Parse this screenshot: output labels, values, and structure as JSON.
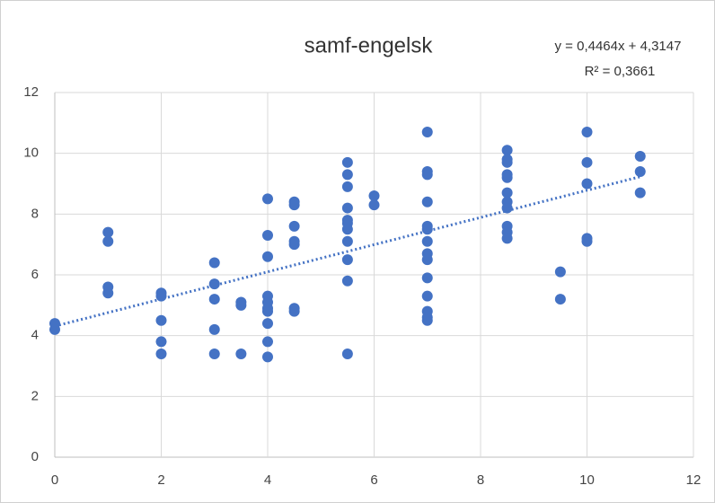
{
  "chart_data": {
    "type": "scatter",
    "title": "samf-engelsk",
    "annotations": [
      "y = 0,4464x + 4,3147",
      "R² = 0,3661"
    ],
    "series": [
      {
        "color": "#4472c4",
        "x": [
          0,
          0,
          1,
          1,
          1,
          1,
          2,
          2,
          2,
          2,
          2,
          3,
          3,
          3,
          3,
          3,
          3.5,
          3.5,
          3.5,
          4,
          4,
          4,
          4,
          4,
          4,
          4,
          4,
          4,
          4,
          4.5,
          4.5,
          4.5,
          4.5,
          4.5,
          4.5,
          4.5,
          5.5,
          5.5,
          5.5,
          5.5,
          5.5,
          5.5,
          5.5,
          5.5,
          5.5,
          5.5,
          5.5,
          6,
          6,
          7,
          7,
          7,
          7,
          7,
          7,
          7,
          7,
          7,
          7,
          7,
          7,
          7,
          7,
          8.5,
          8.5,
          8.5,
          8.5,
          8.5,
          8.5,
          8.5,
          8.5,
          8.5,
          8.5,
          8.5,
          9.5,
          9.5,
          10,
          10,
          10,
          10,
          10,
          11,
          11,
          11
        ],
        "values": [
          4.4,
          4.2,
          7.4,
          7.1,
          5.6,
          5.4,
          5.4,
          5.3,
          4.5,
          3.8,
          3.4,
          6.4,
          5.7,
          5.2,
          4.2,
          3.4,
          5.1,
          5.0,
          3.4,
          8.5,
          7.3,
          6.6,
          5.3,
          5.1,
          4.9,
          4.8,
          4.4,
          3.8,
          3.3,
          8.4,
          8.3,
          7.6,
          7.1,
          7.0,
          4.9,
          4.8,
          9.7,
          9.3,
          8.9,
          8.2,
          7.8,
          7.7,
          7.5,
          7.1,
          6.5,
          5.8,
          3.4,
          8.6,
          8.3,
          10.7,
          9.4,
          9.3,
          8.4,
          7.6,
          7.5,
          7.1,
          6.7,
          6.5,
          5.9,
          5.3,
          4.8,
          4.6,
          4.5,
          10.1,
          9.8,
          9.7,
          9.3,
          9.2,
          8.7,
          8.4,
          8.2,
          7.6,
          7.4,
          7.2,
          6.1,
          5.2,
          10.7,
          9.7,
          9.0,
          7.2,
          7.1,
          9.9,
          9.4,
          8.7
        ]
      }
    ],
    "trendline": {
      "color": "#4472c4",
      "x": [
        0,
        11
      ],
      "values": [
        4.31,
        9.23
      ]
    },
    "xlim": [
      0,
      12
    ],
    "xticks": [
      0,
      2,
      4,
      6,
      8,
      10,
      12
    ],
    "ylim": [
      0,
      12
    ],
    "yticks": [
      0,
      2,
      4,
      6,
      8,
      10,
      12
    ],
    "grid": true
  }
}
